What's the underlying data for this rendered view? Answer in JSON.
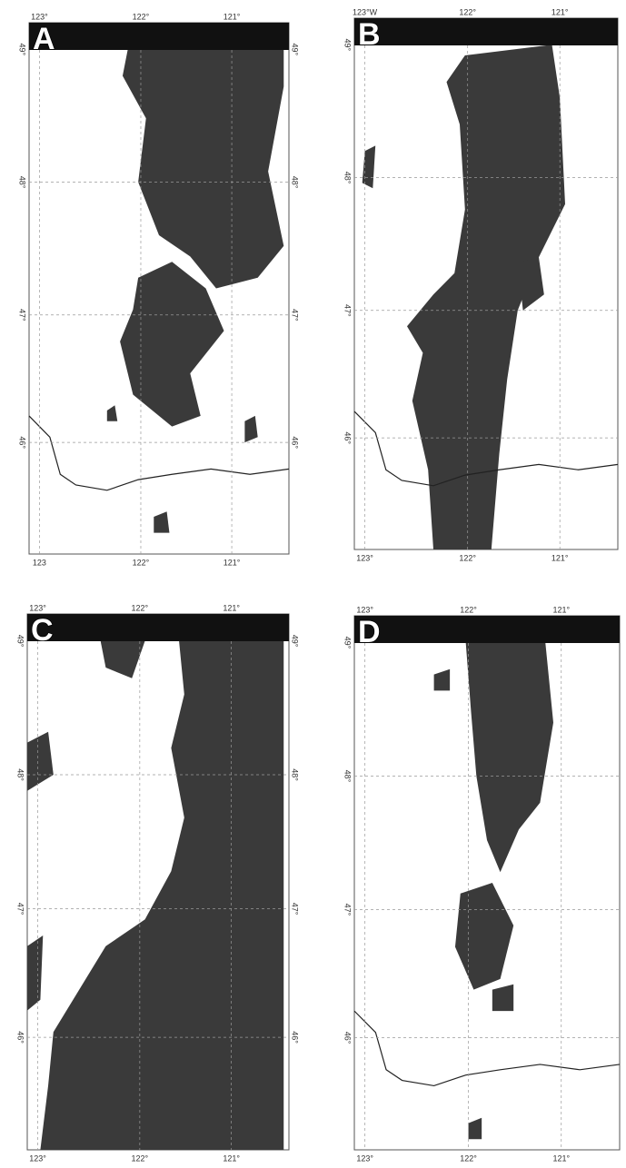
{
  "panels": [
    {
      "label": "A",
      "top_ticks": [
        "123°",
        "122°",
        "121°"
      ],
      "bottom_ticks": [
        "123",
        "122°",
        "121°"
      ],
      "left_ticks": [
        "49°",
        "48°",
        "47°",
        "46°"
      ],
      "right_ticks": [
        "49°",
        "48°",
        "47°",
        "46°"
      ]
    },
    {
      "label": "B",
      "top_ticks": [
        "123°W",
        "122°",
        "121°"
      ],
      "bottom_ticks": [
        "123°",
        "122°",
        "121°"
      ],
      "left_ticks": [
        "49°",
        "48°",
        "47°",
        "46°"
      ],
      "right_ticks": []
    },
    {
      "label": "C",
      "top_ticks": [
        "123°",
        "122°",
        "121°"
      ],
      "bottom_ticks": [
        "123°",
        "122°",
        "121°"
      ],
      "left_ticks": [
        "49°",
        "48°",
        "47°",
        "46°"
      ],
      "right_ticks": [
        "49°",
        "48°",
        "47°",
        "46°"
      ]
    },
    {
      "label": "D",
      "top_ticks": [
        "123°",
        "122°",
        "121°"
      ],
      "bottom_ticks": [
        "123°",
        "122°",
        "121°"
      ],
      "left_ticks": [
        "49°",
        "48°",
        "47°",
        "46°"
      ],
      "right_ticks": []
    }
  ]
}
